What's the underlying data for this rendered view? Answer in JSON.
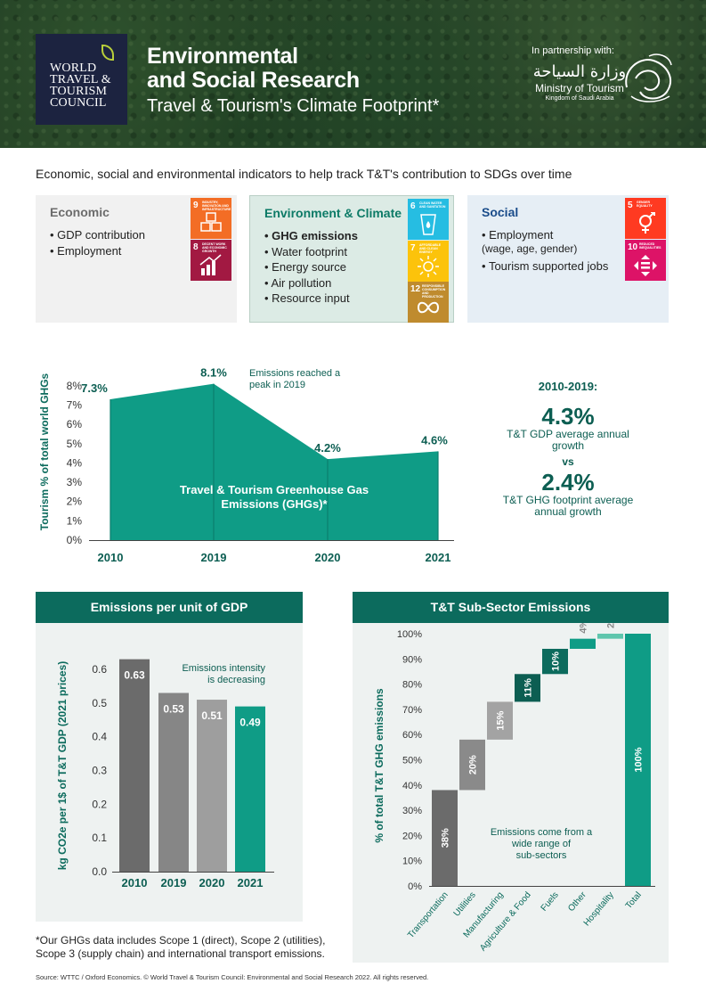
{
  "header": {
    "org_logo_lines": [
      "WORLD",
      "TRAVEL &",
      "TOURISM",
      "COUNCIL"
    ],
    "title_line1": "Environmental",
    "title_line2": "and Social Research",
    "subtitle": "Travel & Tourism's Climate Footprint*",
    "partnership": "In partnership with:",
    "ministry_arabic": "وزارة السياحة",
    "ministry_name": "Ministry of Tourism",
    "ministry_country": "Kingdom of Saudi Arabia"
  },
  "intro": "Economic, social and environmental indicators to help track T&T's contribution to SDGs over time",
  "panels": {
    "economic": {
      "heading": "Economic",
      "items": [
        "GDP contribution",
        "Employment"
      ],
      "sdgs": [
        {
          "num": "9",
          "label": "INDUSTRY, INNOVATION AND INFRASTRUCTURE",
          "color": "#f36d25"
        },
        {
          "num": "8",
          "label": "DECENT WORK AND ECONOMIC GROWTH",
          "color": "#a21942"
        }
      ]
    },
    "environment": {
      "heading": "Environment & Climate",
      "items": [
        "GHG emissions",
        "Water footprint",
        "Energy source",
        "Air pollution",
        "Resource input"
      ],
      "sdgs": [
        {
          "num": "6",
          "label": "CLEAN WATER AND SANITATION",
          "color": "#26bde2"
        },
        {
          "num": "7",
          "label": "AFFORDABLE AND CLEAN ENERGY",
          "color": "#fcc30b"
        },
        {
          "num": "12",
          "label": "RESPONSIBLE CONSUMPTION AND PRODUCTION",
          "color": "#bf8b2e"
        }
      ]
    },
    "social": {
      "heading": "Social",
      "item1": "Employment",
      "item1_sub": "(wage, age, gender)",
      "item2": "Tourism supported jobs",
      "sdgs": [
        {
          "num": "5",
          "label": "GENDER EQUALITY",
          "color": "#ff3a21"
        },
        {
          "num": "10",
          "label": "REDUCED INEQUALITIES",
          "color": "#dd1367"
        }
      ]
    }
  },
  "stats": {
    "period": "2010-2019:",
    "gdp_growth": "4.3%",
    "gdp_caption": "T&T GDP average annual growth",
    "vs": "vs",
    "ghg_growth": "2.4%",
    "ghg_caption": "T&T GHG footprint average annual growth"
  },
  "chart_data": [
    {
      "type": "area",
      "title": "Travel & Tourism Greenhouse Gas Emissions (GHGs)*",
      "ylabel": "Tourism % of total world GHGs",
      "x": [
        "2010",
        "2019",
        "2020",
        "2021"
      ],
      "values": [
        7.3,
        8.1,
        4.2,
        4.6
      ],
      "data_labels": [
        "7.3%",
        "8.1%",
        "4.2%",
        "4.6%"
      ],
      "yticks": [
        "0%",
        "1%",
        "2%",
        "3%",
        "4%",
        "5%",
        "6%",
        "7%",
        "8%"
      ],
      "ylim": [
        0,
        8.5
      ],
      "annotation": "Emissions reached a peak in 2019",
      "color": "#0f9c86"
    },
    {
      "type": "bar",
      "title": "Emissions per unit of GDP",
      "ylabel": "kg CO2e per 1$ of T&T GDP (2021 prices)",
      "categories": [
        "2010",
        "2019",
        "2020",
        "2021"
      ],
      "values": [
        0.63,
        0.53,
        0.51,
        0.49
      ],
      "data_labels": [
        "0.63",
        "0.53",
        "0.51",
        "0.49"
      ],
      "yticks": [
        "0.0",
        "0.1",
        "0.2",
        "0.3",
        "0.4",
        "0.5",
        "0.6"
      ],
      "ylim": [
        0,
        0.65
      ],
      "annotation": "Emissions intensity is decreasing",
      "colors": [
        "#6b6b6b",
        "#868686",
        "#9e9e9e",
        "#0f9c86"
      ]
    },
    {
      "type": "bar",
      "subtype": "waterfall",
      "title": "T&T Sub-Sector Emissions",
      "ylabel": "% of total T&T GHG emissions",
      "categories": [
        "Transportation",
        "Utilities",
        "Manufacturing",
        "Agriculture & Food",
        "Fuels",
        "Other",
        "Hospitality",
        "Total"
      ],
      "values": [
        38,
        20,
        15,
        11,
        10,
        4,
        2,
        100
      ],
      "data_labels": [
        "38%",
        "20%",
        "15%",
        "11%",
        "10%",
        "4%",
        "2%",
        "100%"
      ],
      "yticks": [
        "0%",
        "10%",
        "20%",
        "30%",
        "40%",
        "50%",
        "60%",
        "70%",
        "80%",
        "90%",
        "100%"
      ],
      "ylim": [
        0,
        100
      ],
      "annotation": "Emissions come from a wide range of sub-sectors",
      "colors": [
        "#6b6b6b",
        "#8a8a8a",
        "#a3a3a3",
        "#0c5e52",
        "#0c6b5d",
        "#0f9c86",
        "#5fc6ad",
        "#0f9c86"
      ]
    }
  ],
  "footnote": "*Our GHGs data includes Scope 1 (direct), Scope 2 (utilities), Scope 3 (supply chain) and international transport emissions.",
  "source": "Source: WTTC / Oxford Economics. © World Travel & Tourism Council: Environmental and Social Research 2022. All rights reserved."
}
